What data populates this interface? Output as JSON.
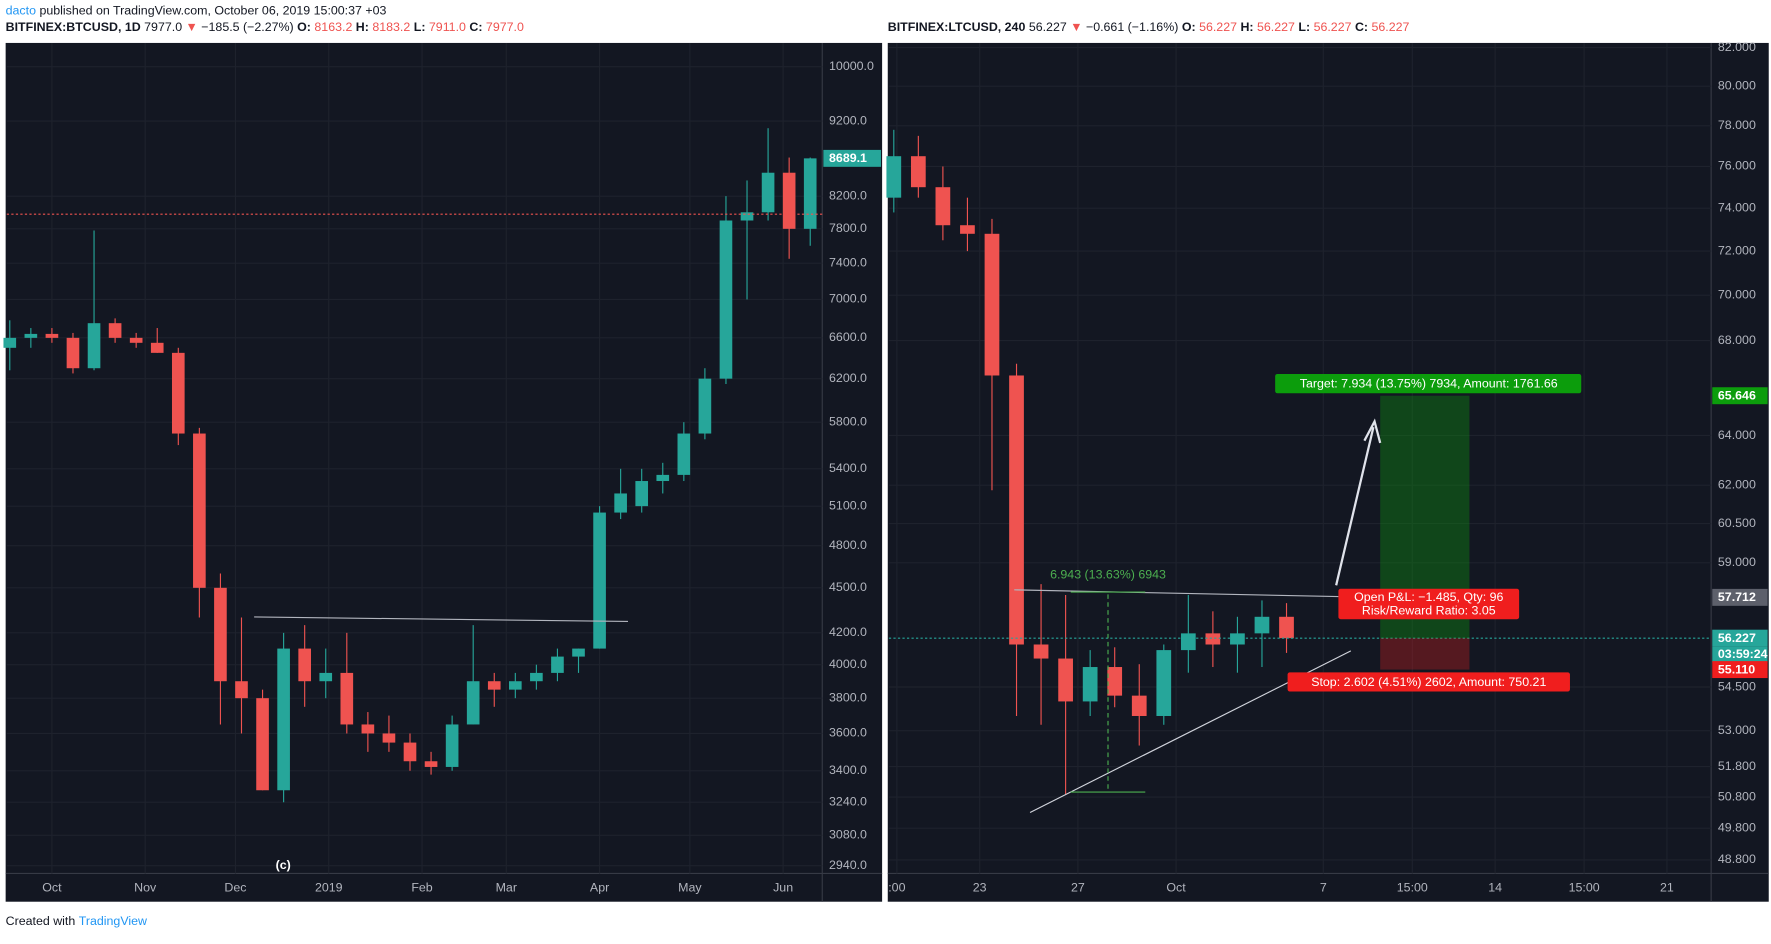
{
  "header": {
    "author": "dacto",
    "published": "published on TradingView.com, October 06, 2019 15:00:37 +03"
  },
  "footer": {
    "created": "Created with",
    "brand": "TradingView"
  },
  "chart_data": [
    {
      "type": "candlestick",
      "log": true,
      "grid": true,
      "up_color": "#26a69a",
      "down_color": "#ef5350",
      "legend": {
        "symbol": "BITFINEX:BTCUSD, 1D",
        "last": "7977.0",
        "arrow": "▼",
        "change": "−185.5 (−2.27%)",
        "o_label": "O:",
        "o": "8163.2",
        "h_label": "H:",
        "h": "8183.2",
        "l_label": "L:",
        "l": "7911.0",
        "c_label": "C:",
        "c": "7977.0"
      },
      "wave_label": "(c)",
      "ylim": [
        2905,
        10370
      ],
      "yticks": [
        {
          "value": 2940,
          "label": "2940.0"
        },
        {
          "value": 3080,
          "label": "3080.0"
        },
        {
          "value": 3240,
          "label": "3240.0"
        },
        {
          "value": 3400,
          "label": "3400.0"
        },
        {
          "value": 3600,
          "label": "3600.0"
        },
        {
          "value": 3800,
          "label": "3800.0"
        },
        {
          "value": 4000,
          "label": "4000.0"
        },
        {
          "value": 4200,
          "label": "4200.0"
        },
        {
          "value": 4500,
          "label": "4500.0"
        },
        {
          "value": 4800,
          "label": "4800.0"
        },
        {
          "value": 5100,
          "label": "5100.0"
        },
        {
          "value": 5400,
          "label": "5400.0"
        },
        {
          "value": 5800,
          "label": "5800.0"
        },
        {
          "value": 6200,
          "label": "6200.0"
        },
        {
          "value": 6600,
          "label": "6600.0"
        },
        {
          "value": 7000,
          "label": "7000.0"
        },
        {
          "value": 7400,
          "label": "7400.0"
        },
        {
          "value": 7800,
          "label": "7800.0"
        },
        {
          "value": 8200,
          "label": "8200.0"
        },
        {
          "value": 9200,
          "label": "9200.0"
        },
        {
          "value": 10000,
          "label": "10000.0"
        }
      ],
      "xlim": [
        -15,
        256
      ],
      "xticks": [
        {
          "value": 0,
          "label": "Oct"
        },
        {
          "value": 31,
          "label": "Nov"
        },
        {
          "value": 61,
          "label": "Dec"
        },
        {
          "value": 92,
          "label": "2019"
        },
        {
          "value": 123,
          "label": "Feb"
        },
        {
          "value": 151,
          "label": "Mar"
        },
        {
          "value": 182,
          "label": "Apr"
        },
        {
          "value": 212,
          "label": "May"
        },
        {
          "value": 243,
          "label": "Jun"
        }
      ],
      "candles": {
        "x": [
          -14,
          -7,
          0,
          7,
          14,
          21,
          28,
          35,
          42,
          49,
          56,
          63,
          70,
          77,
          84,
          91,
          98,
          105,
          112,
          119,
          126,
          133,
          140,
          147,
          154,
          161,
          168,
          175,
          182,
          189,
          196,
          203,
          210,
          217,
          224,
          231,
          238,
          245,
          252
        ],
        "open": [
          6500,
          6600,
          6640,
          6600,
          6300,
          6750,
          6600,
          6550,
          6450,
          5700,
          4500,
          3900,
          3800,
          3300,
          4100,
          3900,
          3950,
          3650,
          3600,
          3550,
          3450,
          3420,
          3650,
          3900,
          3850,
          3900,
          3950,
          4050,
          4100,
          5050,
          5100,
          5300,
          5350,
          5700,
          6200,
          7900,
          8000,
          8500,
          7800
        ],
        "high": [
          6780,
          6700,
          6700,
          6650,
          7780,
          6800,
          6650,
          6700,
          6500,
          5750,
          4600,
          4300,
          3850,
          4200,
          4250,
          4100,
          4200,
          3720,
          3700,
          3600,
          3500,
          3700,
          4250,
          3950,
          3950,
          4000,
          4100,
          4100,
          5100,
          5400,
          5400,
          5450,
          5800,
          6300,
          8200,
          8400,
          9100,
          8700,
          8700
        ],
        "low": [
          6280,
          6500,
          6550,
          6250,
          6280,
          6550,
          6500,
          6450,
          5600,
          4300,
          3650,
          3600,
          3300,
          3240,
          3750,
          3800,
          3600,
          3500,
          3500,
          3400,
          3380,
          3400,
          3650,
          3750,
          3800,
          3850,
          3900,
          3950,
          4100,
          5000,
          5050,
          5200,
          5300,
          5650,
          6150,
          7000,
          7900,
          7450,
          7600
        ],
        "close": [
          6600,
          6640,
          6600,
          6300,
          6750,
          6600,
          6550,
          6450,
          5700,
          4500,
          3900,
          3800,
          3300,
          4100,
          3900,
          3950,
          3650,
          3600,
          3550,
          3450,
          3420,
          3650,
          3900,
          3850,
          3900,
          3950,
          4050,
          4100,
          5050,
          5200,
          5300,
          5350,
          5700,
          6200,
          7900,
          8000,
          8500,
          7800,
          8689.1
        ]
      },
      "price_line": {
        "value": 7977,
        "color": "#ef5350"
      },
      "price_tags": [
        {
          "value": 8689.1,
          "color": "#26a69a"
        }
      ]
    },
    {
      "type": "candlestick",
      "log": true,
      "grid": true,
      "up_color": "#26a69a",
      "down_color": "#ef5350",
      "legend": {
        "symbol": "BITFINEX:LTCUSD, 240",
        "last": "56.227",
        "arrow": "▼",
        "change": "−0.661 (−1.16%)",
        "o_label": "O:",
        "o": "56.227",
        "h_label": "H:",
        "h": "56.227",
        "l_label": "L:",
        "l": "56.227",
        "c_label": "C:",
        "c": "56.227"
      },
      "target_label": "Target: 7.934 (13.75%) 7934, Amount: 1761.66",
      "pnl_label": "Open P&L: −1.485, Qty: 96",
      "rr_label": "Risk/Reward Ratio: 3.05",
      "stop_label": "Stop: 2.602 (4.51%) 2602, Amount: 750.21",
      "measure_label": "6.943 (13.63%) 6943",
      "countdown": "03:59:24",
      "ylim": [
        48.38,
        82.24
      ],
      "yticks": [
        {
          "value": 48.8,
          "label": "48.800"
        },
        {
          "value": 49.8,
          "label": "49.800"
        },
        {
          "value": 50.8,
          "label": "50.800"
        },
        {
          "value": 51.8,
          "label": "51.800"
        },
        {
          "value": 53,
          "label": "53.000"
        },
        {
          "value": 54.5,
          "label": "54.500"
        },
        {
          "value": 59,
          "label": "59.000"
        },
        {
          "value": 60.5,
          "label": "60.500"
        },
        {
          "value": 62,
          "label": "62.000"
        },
        {
          "value": 64,
          "label": "64.000"
        },
        {
          "value": 68,
          "label": "68.000"
        },
        {
          "value": 70,
          "label": "70.000"
        },
        {
          "value": 72,
          "label": "72.000"
        },
        {
          "value": 74,
          "label": "74.000"
        },
        {
          "value": 76,
          "label": "76.000"
        },
        {
          "value": 78,
          "label": "78.000"
        },
        {
          "value": 80,
          "label": "80.000"
        },
        {
          "value": 82,
          "label": "82.000"
        }
      ],
      "xlim": [
        -11.7,
        21.8
      ],
      "xticks": [
        {
          "value": -11.375,
          "label": ":00"
        },
        {
          "value": -8,
          "label": "23"
        },
        {
          "value": -4,
          "label": "27"
        },
        {
          "value": 0,
          "label": "Oct"
        },
        {
          "value": 6,
          "label": "7"
        },
        {
          "value": 9.625,
          "label": "15:00"
        },
        {
          "value": 13,
          "label": "14"
        },
        {
          "value": 16.625,
          "label": "15:00"
        },
        {
          "value": 20,
          "label": "21"
        }
      ],
      "candles": {
        "x": [
          -11.5,
          -10.5,
          -9.5,
          -8.5,
          -7.5,
          -6.5,
          -5.5,
          -4.5,
          -3.5,
          -2.5,
          -1.5,
          -0.5,
          0.5,
          1.5,
          2.5,
          3.5,
          4.5
        ],
        "open": [
          74.5,
          76.5,
          75,
          73.2,
          72.8,
          66.5,
          56,
          55.5,
          54,
          55.2,
          54.2,
          53.5,
          55.8,
          56.4,
          56,
          56.4,
          57
        ],
        "high": [
          77.8,
          77.5,
          76,
          74.5,
          73.5,
          67,
          58.2,
          57.8,
          55.8,
          55.9,
          55.3,
          56,
          57.8,
          57.2,
          57,
          57.6,
          57.5
        ],
        "low": [
          73.8,
          74.5,
          72.5,
          72,
          61.8,
          53.5,
          53.2,
          50.9,
          53.5,
          53.8,
          52.5,
          53.2,
          55,
          55.2,
          55,
          55.2,
          55.7
        ],
        "close": [
          76.5,
          75,
          73.2,
          72.8,
          66.5,
          56,
          55.5,
          54,
          55.2,
          54.2,
          53.5,
          55.8,
          56.4,
          56,
          56.4,
          57,
          56.227
        ]
      },
      "price_line": {
        "value": 56.227,
        "color": "#26a69a"
      },
      "price_tags": [
        {
          "value": 65.646,
          "color": "#0c9d0c"
        },
        {
          "value": 57.712,
          "color": "#5d606b"
        },
        {
          "value": 56.227,
          "color": "#26a69a"
        },
        {
          "value": 55.11,
          "label": "55.110",
          "color": "#f01e1e"
        }
      ]
    }
  ]
}
